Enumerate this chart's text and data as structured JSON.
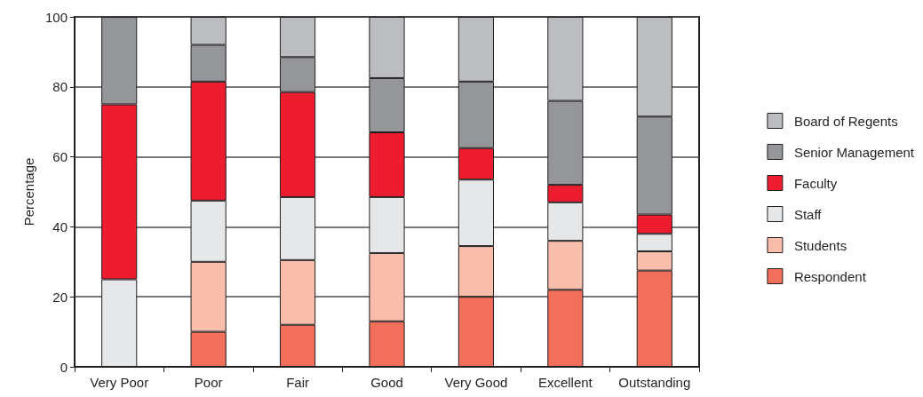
{
  "chart_data": {
    "type": "bar",
    "stacked": true,
    "ylabel": "Percentage",
    "categories": [
      "Very Poor",
      "Poor",
      "Fair",
      "Good",
      "Very Good",
      "Excellent",
      "Outstanding"
    ],
    "series": [
      {
        "name": "Respondent",
        "color": "#f2705b",
        "values": [
          0,
          10,
          12,
          13,
          20,
          22,
          27.5
        ]
      },
      {
        "name": "Students",
        "color": "#f9bdac",
        "values": [
          0,
          20,
          18.5,
          19.5,
          14.5,
          14,
          5.5
        ]
      },
      {
        "name": "Staff",
        "color": "#e6e7e8",
        "values": [
          25,
          17.5,
          18,
          16,
          19,
          11,
          5
        ]
      },
      {
        "name": "Faculty",
        "color": "#ed1c2e",
        "values": [
          50,
          34,
          30,
          18.5,
          9,
          5,
          5.5
        ]
      },
      {
        "name": "Senior Management",
        "color": "#959699",
        "values": [
          25,
          10.5,
          10,
          15.5,
          19,
          24,
          28
        ]
      },
      {
        "name": "Board of Regents",
        "color": "#bcbdc0",
        "values": [
          0,
          8,
          11.5,
          17.5,
          18.5,
          24,
          28.5
        ]
      }
    ],
    "ylim": [
      0,
      100
    ],
    "yticks": [
      0,
      20,
      40,
      60,
      80,
      100
    ],
    "grid": "y",
    "legend": "right"
  }
}
